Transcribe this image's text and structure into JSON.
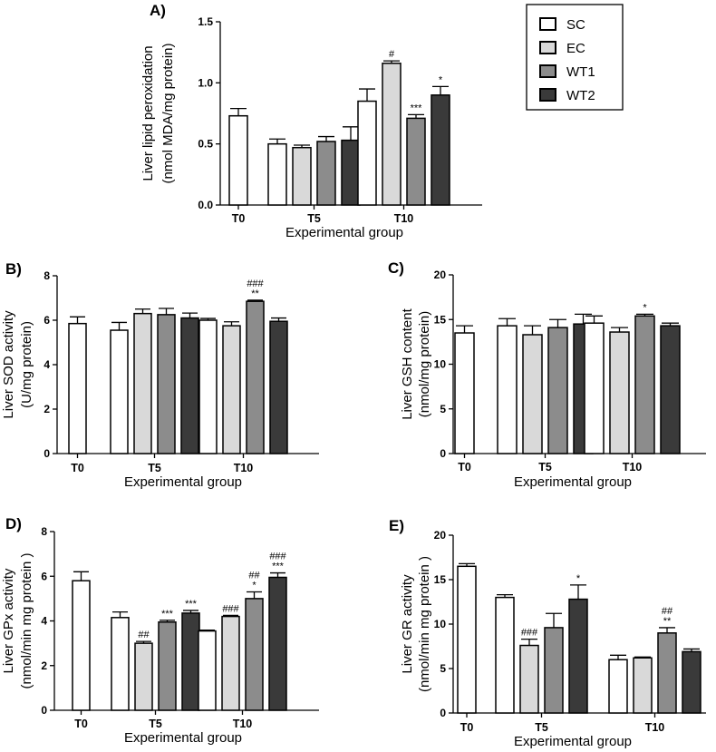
{
  "figure": {
    "legend": [
      {
        "name": "SC",
        "color": "#ffffff"
      },
      {
        "name": "EC",
        "color": "#d9d9d9"
      },
      {
        "name": "WT1",
        "color": "#8c8c8c"
      },
      {
        "name": "WT2",
        "color": "#3a3a3a"
      }
    ],
    "edge_color": "#000000"
  },
  "chart_data": [
    {
      "id": "A",
      "panel_label": "A)",
      "type": "bar",
      "ylabel_lines": [
        "Liver lipid peroxidation",
        "(nmol MDA/mg protein)"
      ],
      "xlabel": "Experimental group",
      "ylim": [
        0,
        1.5
      ],
      "yticks": [
        "0.0",
        "0.5",
        "1.0",
        "1.5"
      ],
      "groups": [
        {
          "label": "T0",
          "bars": [
            {
              "series": "SC",
              "value": 0.73,
              "err": 0.06,
              "sig": []
            }
          ]
        },
        {
          "label": "T5",
          "bars": [
            {
              "series": "SC",
              "value": 0.5,
              "err": 0.04,
              "sig": []
            },
            {
              "series": "EC",
              "value": 0.47,
              "err": 0.02,
              "sig": []
            },
            {
              "series": "WT1",
              "value": 0.52,
              "err": 0.04,
              "sig": []
            },
            {
              "series": "WT2",
              "value": 0.53,
              "err": 0.11,
              "sig": []
            }
          ]
        },
        {
          "label": "T10",
          "bars": [
            {
              "series": "SC",
              "value": 0.85,
              "err": 0.1,
              "sig": []
            },
            {
              "series": "EC",
              "value": 1.16,
              "err": 0.02,
              "sig": [
                "#"
              ]
            },
            {
              "series": "WT1",
              "value": 0.71,
              "err": 0.03,
              "sig": [
                "***"
              ]
            },
            {
              "series": "WT2",
              "value": 0.9,
              "err": 0.07,
              "sig": [
                "*"
              ]
            }
          ]
        }
      ]
    },
    {
      "id": "B",
      "panel_label": "B)",
      "type": "bar",
      "ylabel_lines": [
        "Liver SOD activity",
        "(U/mg protein)"
      ],
      "xlabel": "Experimental group",
      "ylim": [
        0,
        8
      ],
      "yticks": [
        "0",
        "2",
        "4",
        "6",
        "8"
      ],
      "groups": [
        {
          "label": "T0",
          "bars": [
            {
              "series": "SC",
              "value": 5.85,
              "err": 0.3,
              "sig": []
            }
          ]
        },
        {
          "label": "T5",
          "bars": [
            {
              "series": "SC",
              "value": 5.55,
              "err": 0.35,
              "sig": []
            },
            {
              "series": "EC",
              "value": 6.3,
              "err": 0.2,
              "sig": []
            },
            {
              "series": "WT1",
              "value": 6.25,
              "err": 0.28,
              "sig": []
            },
            {
              "series": "WT2",
              "value": 6.1,
              "err": 0.22,
              "sig": []
            }
          ]
        },
        {
          "label": "T10",
          "bars": [
            {
              "series": "SC",
              "value": 6.0,
              "err": 0.08,
              "sig": []
            },
            {
              "series": "EC",
              "value": 5.75,
              "err": 0.18,
              "sig": []
            },
            {
              "series": "WT1",
              "value": 6.85,
              "err": 0.05,
              "sig": [
                "###",
                "**"
              ]
            },
            {
              "series": "WT2",
              "value": 5.95,
              "err": 0.15,
              "sig": []
            }
          ]
        }
      ]
    },
    {
      "id": "C",
      "panel_label": "C)",
      "type": "bar",
      "ylabel_lines": [
        "Liver GSH content",
        "(nmol/mg protein)"
      ],
      "xlabel": "Experimental group",
      "ylim": [
        0,
        20
      ],
      "yticks": [
        "0",
        "5",
        "10",
        "15",
        "20"
      ],
      "groups": [
        {
          "label": "T0",
          "bars": [
            {
              "series": "SC",
              "value": 13.5,
              "err": 0.8,
              "sig": []
            }
          ]
        },
        {
          "label": "T5",
          "bars": [
            {
              "series": "SC",
              "value": 14.3,
              "err": 0.8,
              "sig": []
            },
            {
              "series": "EC",
              "value": 13.3,
              "err": 1.0,
              "sig": []
            },
            {
              "series": "WT1",
              "value": 14.1,
              "err": 0.9,
              "sig": []
            },
            {
              "series": "WT2",
              "value": 14.5,
              "err": 1.1,
              "sig": []
            }
          ]
        },
        {
          "label": "T10",
          "bars": [
            {
              "series": "SC",
              "value": 14.6,
              "err": 0.8,
              "sig": []
            },
            {
              "series": "EC",
              "value": 13.6,
              "err": 0.5,
              "sig": []
            },
            {
              "series": "WT1",
              "value": 15.4,
              "err": 0.2,
              "sig": [
                "*"
              ]
            },
            {
              "series": "WT2",
              "value": 14.3,
              "err": 0.3,
              "sig": []
            }
          ]
        }
      ]
    },
    {
      "id": "D",
      "panel_label": "D)",
      "type": "bar",
      "ylabel_lines": [
        "Liver GPx activity",
        "(nmol/min mg protein )"
      ],
      "xlabel": "Experimental group",
      "ylim": [
        0,
        8
      ],
      "yticks": [
        "0",
        "2",
        "4",
        "6",
        "8"
      ],
      "groups": [
        {
          "label": "T0",
          "bars": [
            {
              "series": "SC",
              "value": 5.8,
              "err": 0.4,
              "sig": []
            }
          ]
        },
        {
          "label": "T5",
          "bars": [
            {
              "series": "SC",
              "value": 4.15,
              "err": 0.25,
              "sig": []
            },
            {
              "series": "EC",
              "value": 3.0,
              "err": 0.08,
              "sig": [
                "##"
              ]
            },
            {
              "series": "WT1",
              "value": 3.95,
              "err": 0.08,
              "sig": [
                "***"
              ]
            },
            {
              "series": "WT2",
              "value": 4.35,
              "err": 0.12,
              "sig": [
                "***"
              ]
            }
          ]
        },
        {
          "label": "T10",
          "bars": [
            {
              "series": "SC",
              "value": 3.55,
              "err": 0.04,
              "sig": []
            },
            {
              "series": "EC",
              "value": 4.2,
              "err": 0.05,
              "sig": [
                "###"
              ]
            },
            {
              "series": "WT1",
              "value": 5.0,
              "err": 0.3,
              "sig": [
                "##",
                "*"
              ]
            },
            {
              "series": "WT2",
              "value": 5.95,
              "err": 0.2,
              "sig": [
                "###",
                "***"
              ]
            }
          ]
        }
      ]
    },
    {
      "id": "E",
      "panel_label": "E)",
      "type": "bar",
      "ylabel_lines": [
        "Liver GR activity",
        "(nmol/min mg protein )"
      ],
      "xlabel": "Experimental group",
      "ylim": [
        0,
        20
      ],
      "yticks": [
        "0",
        "5",
        "10",
        "15",
        "20"
      ],
      "groups": [
        {
          "label": "T0",
          "bars": [
            {
              "series": "SC",
              "value": 16.5,
              "err": 0.3,
              "sig": []
            }
          ]
        },
        {
          "label": "T5",
          "bars": [
            {
              "series": "SC",
              "value": 13.0,
              "err": 0.3,
              "sig": []
            },
            {
              "series": "EC",
              "value": 7.6,
              "err": 0.7,
              "sig": [
                "###"
              ]
            },
            {
              "series": "WT1",
              "value": 9.6,
              "err": 1.6,
              "sig": []
            },
            {
              "series": "WT2",
              "value": 12.8,
              "err": 1.6,
              "sig": [
                "*"
              ]
            }
          ]
        },
        {
          "label": "T10",
          "bars": [
            {
              "series": "SC",
              "value": 6.0,
              "err": 0.5,
              "sig": []
            },
            {
              "series": "EC",
              "value": 6.2,
              "err": 0.1,
              "sig": []
            },
            {
              "series": "WT1",
              "value": 9.0,
              "err": 0.6,
              "sig": [
                "##",
                "**"
              ]
            },
            {
              "series": "WT2",
              "value": 6.9,
              "err": 0.3,
              "sig": []
            }
          ]
        }
      ]
    }
  ]
}
